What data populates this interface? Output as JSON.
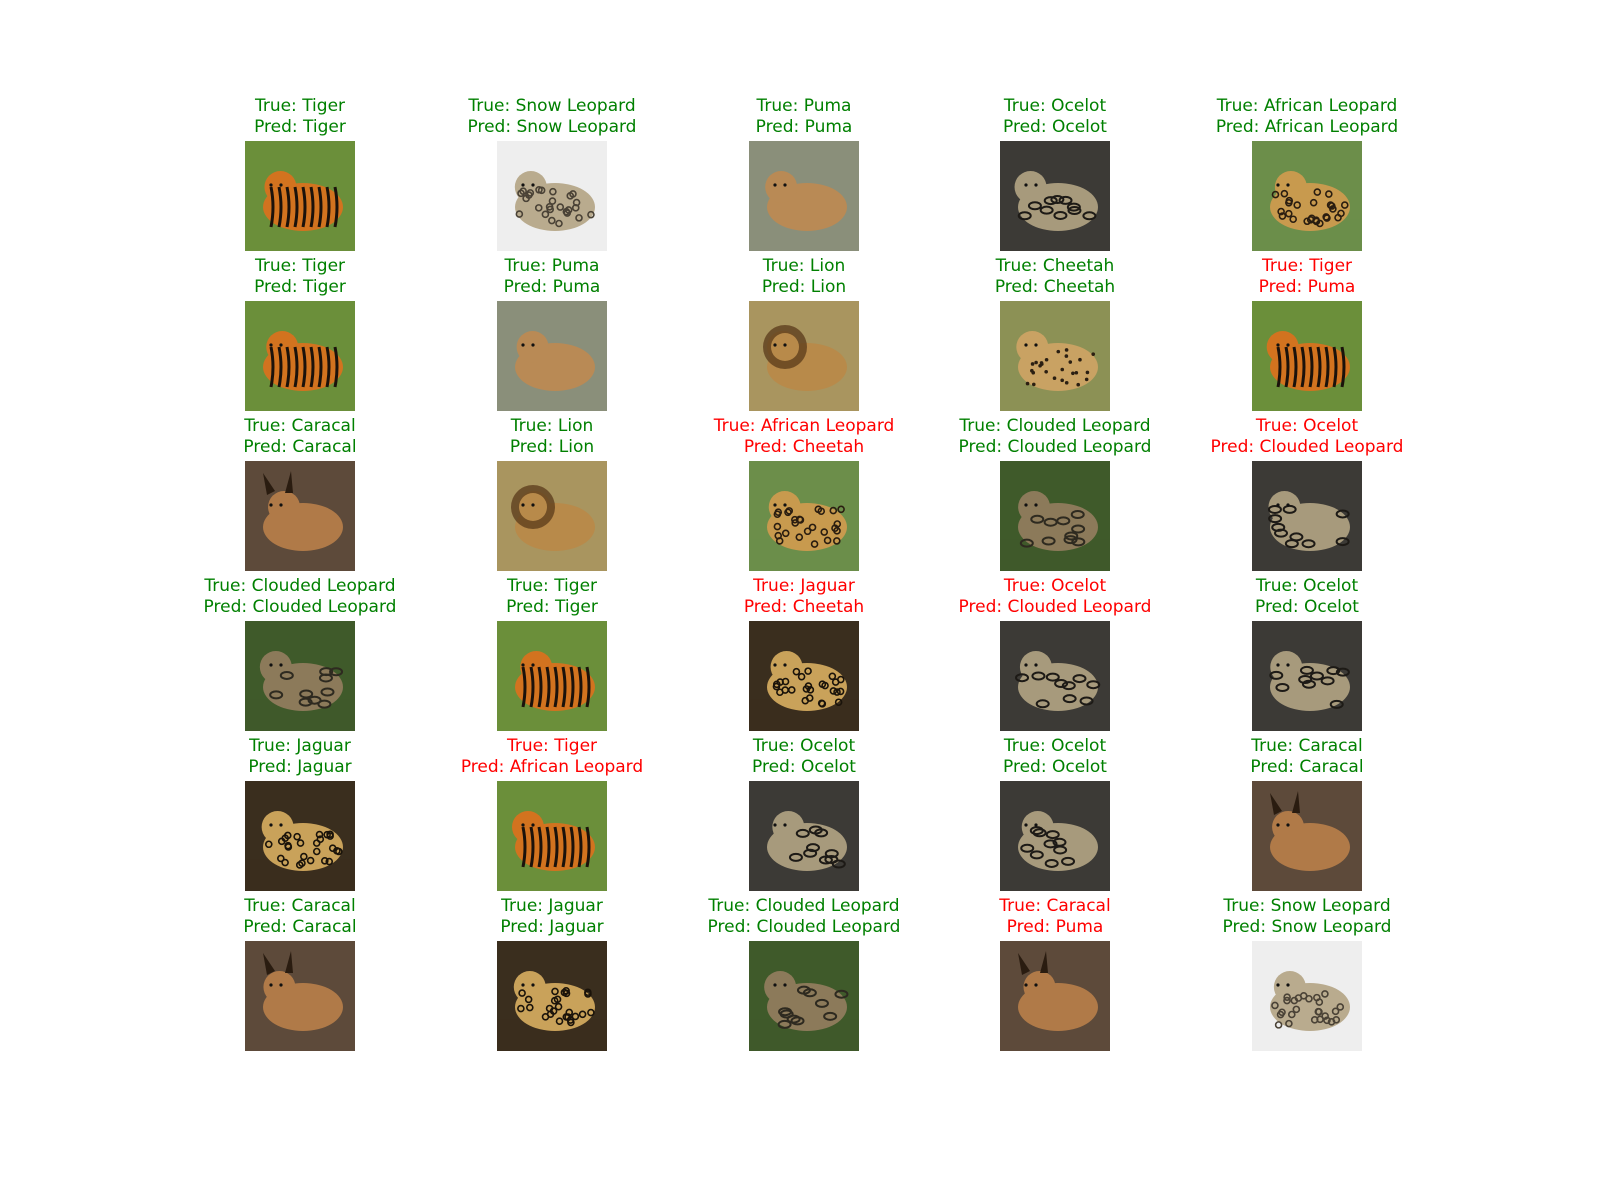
{
  "colors": {
    "correct": "#008000",
    "incorrect": "#ff0000",
    "background": "#ffffff"
  },
  "grid": {
    "rows": 6,
    "cols": 5,
    "cells": [
      {
        "true_label": "True: Tiger",
        "pred_label": "Pred: Tiger",
        "correct": true,
        "image": "tiger-photo"
      },
      {
        "true_label": "True: Snow Leopard",
        "pred_label": "Pred: Snow Leopard",
        "correct": true,
        "image": "snow-leopard-photo"
      },
      {
        "true_label": "True: Puma",
        "pred_label": "Pred: Puma",
        "correct": true,
        "image": "puma-photo"
      },
      {
        "true_label": "True: Ocelot",
        "pred_label": "Pred: Ocelot",
        "correct": true,
        "image": "ocelot-photo"
      },
      {
        "true_label": "True: African Leopard",
        "pred_label": "Pred: African Leopard",
        "correct": true,
        "image": "african-leopard-photo"
      },
      {
        "true_label": "True: Tiger",
        "pred_label": "Pred: Tiger",
        "correct": true,
        "image": "tiger-photo"
      },
      {
        "true_label": "True: Puma",
        "pred_label": "Pred: Puma",
        "correct": true,
        "image": "puma-photo"
      },
      {
        "true_label": "True: Lion",
        "pred_label": "Pred: Lion",
        "correct": true,
        "image": "lion-photo"
      },
      {
        "true_label": "True: Cheetah",
        "pred_label": "Pred: Cheetah",
        "correct": true,
        "image": "cheetah-photo"
      },
      {
        "true_label": "True: Tiger",
        "pred_label": "Pred: Puma",
        "correct": false,
        "image": "tiger-photo"
      },
      {
        "true_label": "True: Caracal",
        "pred_label": "Pred: Caracal",
        "correct": true,
        "image": "caracal-photo"
      },
      {
        "true_label": "True: Lion",
        "pred_label": "Pred: Lion",
        "correct": true,
        "image": "lion-photo"
      },
      {
        "true_label": "True: African Leopard",
        "pred_label": "Pred: Cheetah",
        "correct": false,
        "image": "african-leopard-photo"
      },
      {
        "true_label": "True: Clouded Leopard",
        "pred_label": "Pred: Clouded Leopard",
        "correct": true,
        "image": "clouded-leopard-photo"
      },
      {
        "true_label": "True: Ocelot",
        "pred_label": "Pred: Clouded Leopard",
        "correct": false,
        "image": "ocelot-photo"
      },
      {
        "true_label": "True: Clouded Leopard",
        "pred_label": "Pred: Clouded Leopard",
        "correct": true,
        "image": "clouded-leopard-photo"
      },
      {
        "true_label": "True: Tiger",
        "pred_label": "Pred: Tiger",
        "correct": true,
        "image": "tiger-photo"
      },
      {
        "true_label": "True: Jaguar",
        "pred_label": "Pred: Cheetah",
        "correct": false,
        "image": "jaguar-photo"
      },
      {
        "true_label": "True: Ocelot",
        "pred_label": "Pred: Clouded Leopard",
        "correct": false,
        "image": "ocelot-photo"
      },
      {
        "true_label": "True: Ocelot",
        "pred_label": "Pred: Ocelot",
        "correct": true,
        "image": "ocelot-photo"
      },
      {
        "true_label": "True: Jaguar",
        "pred_label": "Pred: Jaguar",
        "correct": true,
        "image": "jaguar-photo"
      },
      {
        "true_label": "True: Tiger",
        "pred_label": "Pred: African Leopard",
        "correct": false,
        "image": "tiger-photo"
      },
      {
        "true_label": "True: Ocelot",
        "pred_label": "Pred: Ocelot",
        "correct": true,
        "image": "ocelot-photo"
      },
      {
        "true_label": "True: Ocelot",
        "pred_label": "Pred: Ocelot",
        "correct": true,
        "image": "ocelot-photo"
      },
      {
        "true_label": "True: Caracal",
        "pred_label": "Pred: Caracal",
        "correct": true,
        "image": "caracal-photo"
      },
      {
        "true_label": "True: Caracal",
        "pred_label": "Pred: Caracal",
        "correct": true,
        "image": "caracal-photo"
      },
      {
        "true_label": "True: Jaguar",
        "pred_label": "Pred: Jaguar",
        "correct": true,
        "image": "jaguar-photo"
      },
      {
        "true_label": "True: Clouded Leopard",
        "pred_label": "Pred: Clouded Leopard",
        "correct": true,
        "image": "clouded-leopard-photo"
      },
      {
        "true_label": "True: Caracal",
        "pred_label": "Pred: Puma",
        "correct": false,
        "image": "caracal-photo"
      },
      {
        "true_label": "True: Snow Leopard",
        "pred_label": "Pred: Snow Leopard",
        "correct": true,
        "image": "snow-leopard-photo"
      }
    ]
  }
}
